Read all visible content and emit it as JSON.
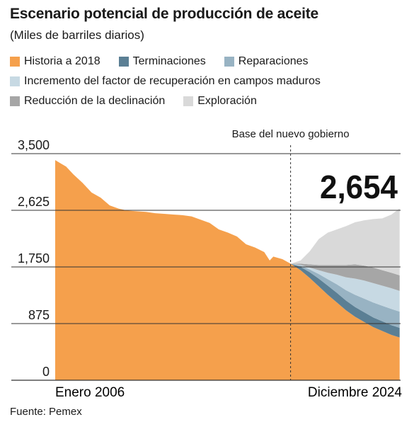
{
  "chart_data": {
    "type": "area",
    "title": "Escenario potencial de producción de aceite",
    "subtitle": "(Miles de barriles diarios)",
    "source": "Fuente: Pemex",
    "ylim": [
      0,
      3500
    ],
    "yticks": [
      0,
      875,
      1750,
      2625,
      3500
    ],
    "ytick_labels": [
      "0",
      "875",
      "1,750",
      "2,625",
      "3,500"
    ],
    "x_range": [
      2006.0,
      2025.0
    ],
    "x_labels": [
      "Enero 2006",
      "Diciembre 2024"
    ],
    "annotation_line": {
      "x": 2018.95,
      "label": "Base del nuevo gobierno"
    },
    "highlight_value": "2,654",
    "legend": [
      {
        "name": "Historia a 2018",
        "color": "#f5a04c"
      },
      {
        "name": "Terminaciones",
        "color": "#5b7f94"
      },
      {
        "name": "Reparaciones",
        "color": "#98b3c3"
      },
      {
        "name": "Incremento del factor de recuperación en campos maduros",
        "color": "#c7d9e3"
      },
      {
        "name": "Reducción de la declinación",
        "color": "#a6a6a6"
      },
      {
        "name": "Exploración",
        "color": "#d9d9d9"
      }
    ],
    "history": {
      "name": "Historia a 2018",
      "x": [
        2006.0,
        2006.3,
        2006.6,
        2007.0,
        2007.5,
        2008.0,
        2008.5,
        2009.0,
        2009.5,
        2010.0,
        2010.5,
        2011.0,
        2011.5,
        2012.0,
        2012.5,
        2013.0,
        2013.5,
        2014.0,
        2014.5,
        2015.0,
        2015.5,
        2016.0,
        2016.5,
        2017.0,
        2017.5,
        2017.8,
        2018.0,
        2018.5,
        2018.95
      ],
      "y": [
        3400,
        3350,
        3300,
        3180,
        3050,
        2900,
        2820,
        2700,
        2650,
        2620,
        2610,
        2600,
        2580,
        2570,
        2560,
        2550,
        2530,
        2480,
        2430,
        2330,
        2280,
        2220,
        2100,
        2050,
        1980,
        1850,
        1910,
        1870,
        1800
      ]
    },
    "forecast_x": [
      2018.95,
      2019.5,
      2020.0,
      2020.5,
      2021.0,
      2021.5,
      2022.0,
      2022.5,
      2023.0,
      2023.5,
      2024.0,
      2024.5,
      2024.95
    ],
    "forecast_series": [
      {
        "name": "Historia a 2018",
        "values": [
          1800,
          1700,
          1580,
          1450,
          1320,
          1200,
          1080,
          980,
          900,
          820,
          760,
          700,
          660
        ]
      },
      {
        "name": "Terminaciones",
        "values": [
          0,
          50,
          90,
          120,
          140,
          150,
          150,
          150,
          150,
          150,
          150,
          150,
          150
        ]
      },
      {
        "name": "Reparaciones",
        "values": [
          0,
          20,
          40,
          70,
          100,
          130,
          160,
          190,
          210,
          230,
          240,
          250,
          250
        ]
      },
      {
        "name": "Incremento del factor de recuperación en campos maduros",
        "values": [
          0,
          10,
          30,
          60,
          100,
          150,
          200,
          250,
          280,
          300,
          310,
          320,
          320
        ]
      },
      {
        "name": "Reducción de la declinación",
        "values": [
          0,
          20,
          50,
          80,
          120,
          150,
          190,
          220,
          230,
          240,
          240,
          240,
          240
        ]
      },
      {
        "name": "Exploración",
        "values": [
          0,
          50,
          200,
          400,
          500,
          550,
          600,
          650,
          700,
          750,
          800,
          900,
          1034
        ]
      }
    ]
  }
}
